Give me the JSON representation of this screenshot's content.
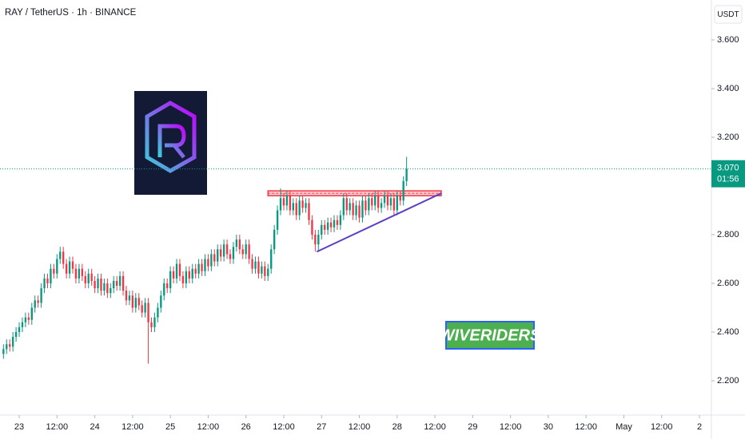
{
  "chart_data": {
    "type": "candlestick",
    "title": "RAY / TetherUS · 1h · BINANCE",
    "y_axis_unit": "USDT",
    "x": [
      -5,
      -4,
      -3,
      -2,
      -1,
      0,
      1,
      2,
      3,
      4,
      5,
      6,
      7,
      8,
      9,
      10,
      11,
      12,
      13,
      14,
      15,
      16,
      17,
      18,
      19,
      20,
      21,
      22,
      23,
      24,
      25,
      26,
      27,
      28,
      29,
      30,
      31,
      32,
      33,
      34,
      35,
      36,
      37,
      38,
      39,
      40,
      41,
      42,
      43,
      44,
      45,
      46,
      47,
      48,
      49,
      50,
      51,
      52,
      53,
      54,
      55,
      56,
      57,
      58,
      59,
      60,
      61,
      62,
      63,
      64,
      65,
      66,
      67,
      68,
      69,
      70,
      71,
      72,
      73,
      74,
      75,
      76,
      77,
      78,
      79,
      80,
      81,
      82,
      83,
      84,
      85,
      86,
      87,
      88,
      89,
      90,
      91,
      92,
      93,
      94,
      95,
      96,
      97,
      98,
      99,
      100,
      101,
      102,
      103,
      104,
      105,
      106,
      107,
      108,
      109,
      110,
      111,
      112,
      113,
      114,
      115,
      116,
      117,
      118,
      119,
      120,
      121,
      122,
      123
    ],
    "open": [
      2.31,
      2.33,
      2.35,
      2.34,
      2.38,
      2.4,
      2.42,
      2.44,
      2.46,
      2.45,
      2.5,
      2.53,
      2.52,
      2.58,
      2.62,
      2.6,
      2.66,
      2.64,
      2.7,
      2.73,
      2.68,
      2.64,
      2.69,
      2.66,
      2.62,
      2.66,
      2.63,
      2.6,
      2.64,
      2.61,
      2.58,
      2.62,
      2.57,
      2.6,
      2.56,
      2.58,
      2.61,
      2.59,
      2.63,
      2.57,
      2.53,
      2.55,
      2.5,
      2.54,
      2.51,
      2.48,
      2.52,
      2.44,
      2.42,
      2.46,
      2.5,
      2.55,
      2.6,
      2.58,
      2.65,
      2.62,
      2.68,
      2.63,
      2.6,
      2.65,
      2.62,
      2.66,
      2.64,
      2.68,
      2.65,
      2.7,
      2.67,
      2.72,
      2.69,
      2.74,
      2.71,
      2.76,
      2.72,
      2.7,
      2.75,
      2.78,
      2.74,
      2.72,
      2.76,
      2.7,
      2.66,
      2.69,
      2.64,
      2.67,
      2.63,
      2.66,
      2.74,
      2.82,
      2.9,
      2.95,
      2.92,
      2.96,
      2.9,
      2.93,
      2.88,
      2.94,
      2.91,
      2.93,
      2.86,
      2.8,
      2.76,
      2.8,
      2.84,
      2.82,
      2.85,
      2.83,
      2.86,
      2.84,
      2.88,
      2.95,
      2.9,
      2.93,
      2.88,
      2.92,
      2.87,
      2.94,
      2.9,
      2.95,
      2.92,
      2.96,
      2.91,
      2.93,
      2.96,
      2.92,
      2.95,
      2.9,
      2.96,
      2.94,
      3.02
    ],
    "high": [
      2.35,
      2.37,
      2.37,
      2.4,
      2.42,
      2.44,
      2.46,
      2.48,
      2.48,
      2.52,
      2.55,
      2.55,
      2.6,
      2.64,
      2.64,
      2.68,
      2.68,
      2.72,
      2.75,
      2.75,
      2.7,
      2.71,
      2.71,
      2.68,
      2.68,
      2.68,
      2.65,
      2.66,
      2.66,
      2.63,
      2.64,
      2.64,
      2.62,
      2.62,
      2.6,
      2.63,
      2.63,
      2.65,
      2.65,
      2.59,
      2.57,
      2.57,
      2.56,
      2.56,
      2.53,
      2.54,
      2.54,
      2.46,
      2.48,
      2.52,
      2.57,
      2.62,
      2.62,
      2.67,
      2.67,
      2.7,
      2.7,
      2.65,
      2.67,
      2.67,
      2.68,
      2.68,
      2.7,
      2.7,
      2.72,
      2.72,
      2.74,
      2.74,
      2.76,
      2.76,
      2.78,
      2.78,
      2.74,
      2.77,
      2.8,
      2.8,
      2.76,
      2.78,
      2.78,
      2.72,
      2.71,
      2.71,
      2.69,
      2.69,
      2.68,
      2.76,
      2.84,
      2.92,
      2.99,
      2.97,
      2.98,
      2.98,
      2.95,
      2.95,
      2.96,
      2.96,
      2.95,
      2.95,
      2.88,
      2.82,
      2.82,
      2.86,
      2.86,
      2.87,
      2.87,
      2.88,
      2.88,
      2.9,
      2.97,
      2.97,
      2.95,
      2.95,
      2.94,
      2.94,
      2.96,
      2.96,
      2.97,
      2.97,
      2.98,
      2.98,
      2.95,
      2.98,
      2.98,
      2.97,
      2.97,
      2.98,
      2.98,
      3.04,
      3.12
    ],
    "low": [
      2.29,
      2.31,
      2.32,
      2.32,
      2.36,
      2.38,
      2.4,
      2.42,
      2.43,
      2.43,
      2.48,
      2.5,
      2.5,
      2.56,
      2.58,
      2.58,
      2.62,
      2.62,
      2.68,
      2.66,
      2.62,
      2.62,
      2.64,
      2.6,
      2.6,
      2.61,
      2.58,
      2.58,
      2.59,
      2.56,
      2.56,
      2.55,
      2.55,
      2.54,
      2.54,
      2.56,
      2.57,
      2.57,
      2.55,
      2.51,
      2.51,
      2.48,
      2.48,
      2.49,
      2.46,
      2.46,
      2.27,
      2.4,
      2.4,
      2.44,
      2.48,
      2.53,
      2.56,
      2.56,
      2.6,
      2.6,
      2.61,
      2.58,
      2.58,
      2.6,
      2.6,
      2.62,
      2.62,
      2.63,
      2.63,
      2.65,
      2.65,
      2.67,
      2.67,
      2.69,
      2.69,
      2.7,
      2.68,
      2.68,
      2.73,
      2.72,
      2.7,
      2.7,
      2.68,
      2.64,
      2.64,
      2.62,
      2.62,
      2.61,
      2.61,
      2.64,
      2.72,
      2.8,
      2.88,
      2.9,
      2.9,
      2.88,
      2.88,
      2.86,
      2.86,
      2.89,
      2.89,
      2.84,
      2.78,
      2.73,
      2.73,
      2.78,
      2.8,
      2.8,
      2.81,
      2.81,
      2.82,
      2.82,
      2.86,
      2.88,
      2.88,
      2.86,
      2.86,
      2.85,
      2.85,
      2.88,
      2.88,
      2.9,
      2.9,
      2.89,
      2.89,
      2.91,
      2.9,
      2.9,
      2.88,
      2.88,
      2.92,
      2.92,
      3.0
    ],
    "close": [
      2.33,
      2.35,
      2.34,
      2.38,
      2.4,
      2.42,
      2.44,
      2.46,
      2.45,
      2.5,
      2.53,
      2.52,
      2.58,
      2.62,
      2.6,
      2.66,
      2.64,
      2.7,
      2.73,
      2.68,
      2.64,
      2.69,
      2.66,
      2.62,
      2.66,
      2.63,
      2.6,
      2.64,
      2.61,
      2.58,
      2.62,
      2.57,
      2.6,
      2.56,
      2.58,
      2.61,
      2.59,
      2.63,
      2.57,
      2.53,
      2.55,
      2.5,
      2.54,
      2.51,
      2.48,
      2.52,
      2.44,
      2.42,
      2.46,
      2.5,
      2.55,
      2.6,
      2.58,
      2.65,
      2.62,
      2.68,
      2.63,
      2.6,
      2.65,
      2.62,
      2.66,
      2.64,
      2.68,
      2.65,
      2.7,
      2.67,
      2.72,
      2.69,
      2.74,
      2.71,
      2.76,
      2.72,
      2.7,
      2.75,
      2.78,
      2.74,
      2.72,
      2.76,
      2.7,
      2.66,
      2.69,
      2.64,
      2.67,
      2.63,
      2.66,
      2.74,
      2.82,
      2.9,
      2.95,
      2.92,
      2.96,
      2.9,
      2.93,
      2.88,
      2.94,
      2.91,
      2.93,
      2.86,
      2.8,
      2.76,
      2.8,
      2.84,
      2.82,
      2.85,
      2.83,
      2.86,
      2.84,
      2.88,
      2.95,
      2.9,
      2.93,
      2.88,
      2.92,
      2.87,
      2.94,
      2.9,
      2.95,
      2.92,
      2.96,
      2.91,
      2.93,
      2.96,
      2.92,
      2.95,
      2.9,
      2.96,
      2.94,
      3.02,
      3.07
    ],
    "up_color": "#089981",
    "down_color": "#f23645",
    "xlim": [
      -6.1,
      219.8
    ],
    "ylim": [
      2.059,
      3.764
    ],
    "xticks": [
      {
        "value": 0,
        "label": "23"
      },
      {
        "value": 12,
        "label": "12:00"
      },
      {
        "value": 24,
        "label": "24"
      },
      {
        "value": 36,
        "label": "12:00"
      },
      {
        "value": 48,
        "label": "25"
      },
      {
        "value": 60,
        "label": "12:00"
      },
      {
        "value": 72,
        "label": "26"
      },
      {
        "value": 84,
        "label": "12:00"
      },
      {
        "value": 96,
        "label": "27"
      },
      {
        "value": 108,
        "label": "12:00"
      },
      {
        "value": 120,
        "label": "28"
      },
      {
        "value": 132,
        "label": "12:00"
      },
      {
        "value": 144,
        "label": "29"
      },
      {
        "value": 156,
        "label": "12:00"
      },
      {
        "value": 168,
        "label": "30"
      },
      {
        "value": 180,
        "label": "12:00"
      },
      {
        "value": 192,
        "label": "May"
      },
      {
        "value": 204,
        "label": "12:00"
      },
      {
        "value": 216,
        "label": "2"
      }
    ],
    "yticks": [
      {
        "value": 2.2,
        "label": "2.200"
      },
      {
        "value": 2.4,
        "label": "2.400"
      },
      {
        "value": 2.6,
        "label": "2.600"
      },
      {
        "value": 2.8,
        "label": "2.800"
      },
      {
        "value": 3.2,
        "label": "3.200"
      },
      {
        "value": 3.4,
        "label": "3.400"
      },
      {
        "value": 3.6,
        "label": "3.600"
      }
    ],
    "grid": false,
    "last_price": {
      "value": 3.07,
      "label": "3.070",
      "color": "#089981"
    },
    "countdown": "01:56",
    "resistance_zone": {
      "x": [
        79,
        134
      ],
      "y": [
        2.96,
        2.98
      ],
      "color": "#f23645"
    },
    "trendline": {
      "x": [
        94.5,
        134
      ],
      "y": [
        2.73,
        2.97
      ],
      "color": "#5b3fc4"
    },
    "watermark": "WIVERIDERS"
  }
}
